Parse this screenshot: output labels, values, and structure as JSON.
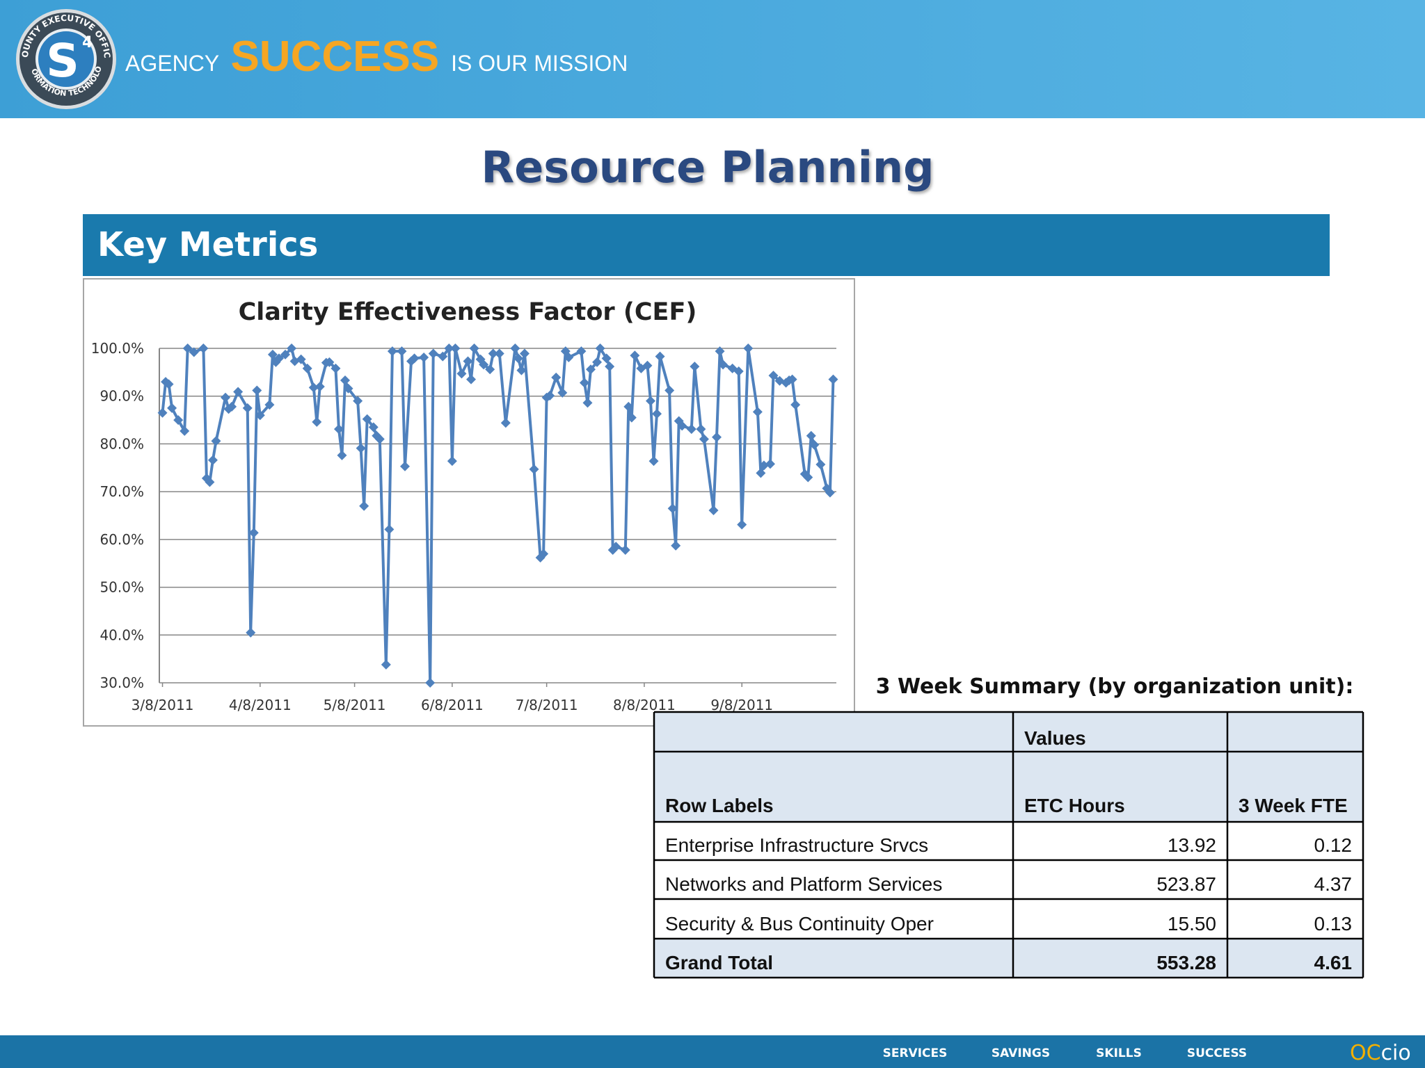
{
  "header": {
    "logo_top": "COUNTY EXECUTIVE OFFICE",
    "logo_bottom": "INFORMATION TECHNOLOGY",
    "logo_letter": "S",
    "logo_superscript": "4",
    "tagline_1": "AGENCY",
    "tagline_2": "SUCCESS",
    "tagline_3": "IS OUR MISSION"
  },
  "title": "Resource Planning",
  "section": "Key Metrics",
  "chart_data": {
    "type": "line",
    "title": "Clarity Effectiveness Factor (CEF)",
    "color": "#4f81bd",
    "marker": "diamond",
    "grid": true,
    "x": [
      "3/8/2011",
      "3/9/2011",
      "3/10/2011",
      "3/11/2011",
      "3/13/2011",
      "3/15/2011",
      "3/16/2011",
      "3/18/2011",
      "3/21/2011",
      "3/22/2011",
      "3/23/2011",
      "3/24/2011",
      "3/25/2011",
      "3/28/2011",
      "3/29/2011",
      "3/30/2011",
      "4/1/2011",
      "4/4/2011",
      "4/5/2011",
      "4/6/2011",
      "4/7/2011",
      "4/8/2011",
      "4/11/2011",
      "4/12/2011",
      "4/13/2011",
      "4/14/2011",
      "4/16/2011",
      "4/18/2011",
      "4/19/2011",
      "4/21/2011",
      "4/23/2011",
      "4/25/2011",
      "4/26/2011",
      "4/27/2011",
      "4/29/2011",
      "4/30/2011",
      "5/2/2011",
      "5/3/2011",
      "5/4/2011",
      "5/5/2011",
      "5/6/2011",
      "5/9/2011",
      "5/10/2011",
      "5/11/2011",
      "5/12/2011",
      "5/14/2011",
      "5/15/2011",
      "5/16/2011",
      "5/18/2011",
      "5/19/2011",
      "5/20/2011",
      "5/23/2011",
      "5/24/2011",
      "5/26/2011",
      "5/27/2011",
      "5/30/2011",
      "6/1/2011",
      "6/2/2011",
      "6/5/2011",
      "6/7/2011",
      "6/8/2011",
      "6/9/2011",
      "6/11/2011",
      "6/13/2011",
      "6/14/2011",
      "6/15/2011",
      "6/17/2011",
      "6/18/2011",
      "6/20/2011",
      "6/21/2011",
      "6/23/2011",
      "6/25/2011",
      "6/28/2011",
      "6/29/2011",
      "6/30/2011",
      "7/1/2011",
      "7/4/2011",
      "7/6/2011",
      "7/7/2011",
      "7/8/2011",
      "7/9/2011",
      "7/11/2011",
      "7/13/2011",
      "7/14/2011",
      "7/15/2011",
      "7/19/2011",
      "7/20/2011",
      "7/21/2011",
      "7/22/2011",
      "7/24/2011",
      "7/25/2011",
      "7/27/2011",
      "7/28/2011",
      "7/29/2011",
      "7/30/2011",
      "8/2/2011",
      "8/3/2011",
      "8/4/2011",
      "8/5/2011",
      "8/7/2011",
      "8/9/2011",
      "8/10/2011",
      "8/11/2011",
      "8/12/2011",
      "8/13/2011",
      "8/16/2011",
      "8/17/2011",
      "8/18/2011",
      "8/19/2011",
      "8/20/2011",
      "8/23/2011",
      "8/24/2011",
      "8/26/2011",
      "8/27/2011",
      "8/30/2011",
      "8/31/2011",
      "9/1/2011",
      "9/2/2011",
      "9/5/2011",
      "9/7/2011",
      "9/8/2011",
      "9/10/2011",
      "9/13/2011",
      "9/14/2011",
      "9/15/2011",
      "9/17/2011",
      "9/18/2011",
      "9/20/2011",
      "9/22/2011",
      "9/23/2011",
      "9/24/2011",
      "9/25/2011",
      "9/28/2011",
      "9/29/2011",
      "9/30/2011",
      "10/1/2011",
      "10/3/2011",
      "10/5/2011",
      "10/6/2011",
      "10/7/2011"
    ],
    "values": [
      86.5,
      93,
      92.5,
      87.5,
      85,
      82.7,
      100,
      99.2,
      100,
      72.8,
      72,
      76.6,
      80.6,
      89.7,
      87.3,
      87.8,
      90.9,
      87.5,
      40.5,
      61.4,
      91.2,
      86,
      88.2,
      98.7,
      97.1,
      97.9,
      98.7,
      100,
      97.3,
      97.7,
      95.8,
      91.8,
      84.6,
      92,
      97,
      97.1,
      95.8,
      83.1,
      77.6,
      93.3,
      91.6,
      89,
      79.1,
      67,
      85.2,
      83.5,
      81.7,
      81,
      33.8,
      62.1,
      99.4,
      99.4,
      75.3,
      97.3,
      97.9,
      98.1,
      30,
      98.9,
      98.3,
      100,
      76.4,
      100,
      94.7,
      97.3,
      93.5,
      100,
      97.7,
      96.6,
      95.6,
      98.9,
      98.9,
      84.4,
      100,
      97.9,
      95.4,
      98.9,
      74.7,
      56.2,
      57,
      89.7,
      90.1,
      93.9,
      90.7,
      99.4,
      98.1,
      99.4,
      92.8,
      88.6,
      95.6,
      97.1,
      100,
      97.9,
      96.2,
      57.8,
      58.5,
      57.8,
      87.8,
      85.5,
      98.5,
      95.8,
      96.4,
      89,
      76.4,
      86.3,
      98.3,
      91.2,
      66.5,
      58.7,
      84.8,
      83.8,
      83.1,
      96.2,
      83.1,
      81,
      66.1,
      81.4,
      99.4,
      96.6,
      95.8,
      95.2,
      63.1,
      100,
      86.7,
      73.9,
      75.5,
      75.8,
      94.3,
      93.2,
      92.8,
      93.3,
      93.5,
      88.2,
      73.7,
      73,
      81.7,
      79.8,
      75.7,
      70.7,
      69.8,
      93.5
    ],
    "xlim": [
      "3/7/2011",
      "10/8/2011"
    ],
    "xticks": [
      "3/8/2011",
      "4/8/2011",
      "5/8/2011",
      "6/8/2011",
      "7/8/2011",
      "8/8/2011",
      "9/8/2011"
    ],
    "ylim": [
      30,
      100
    ],
    "yticks": [
      {
        "value": 30,
        "label": "30.0%"
      },
      {
        "value": 40,
        "label": "40.0%"
      },
      {
        "value": 50,
        "label": "50.0%"
      },
      {
        "value": 60,
        "label": "60.0%"
      },
      {
        "value": 70,
        "label": "70.0%"
      },
      {
        "value": 80,
        "label": "80.0%"
      },
      {
        "value": 90,
        "label": "90.0%"
      },
      {
        "value": 100,
        "label": "100.0%"
      }
    ]
  },
  "table": {
    "caption": "3 Week Summary (by organization unit):",
    "values_header": "Values",
    "columns": [
      "Row Labels",
      "ETC Hours",
      "3 Week FTE"
    ],
    "rows": [
      [
        "Enterprise Infrastructure Srvcs",
        "13.92",
        "0.12"
      ],
      [
        "Networks and Platform Services",
        "523.87",
        "4.37"
      ],
      [
        "Security & Bus Continuity Oper",
        "15.50",
        "0.13"
      ]
    ],
    "total": [
      "Grand Total",
      "553.28",
      "4.61"
    ]
  },
  "footer": {
    "links": [
      "SERVICES",
      "SAVINGS",
      "SKILLS",
      "SUCCESS"
    ],
    "logo_a": "OC",
    "logo_b": "cio"
  }
}
